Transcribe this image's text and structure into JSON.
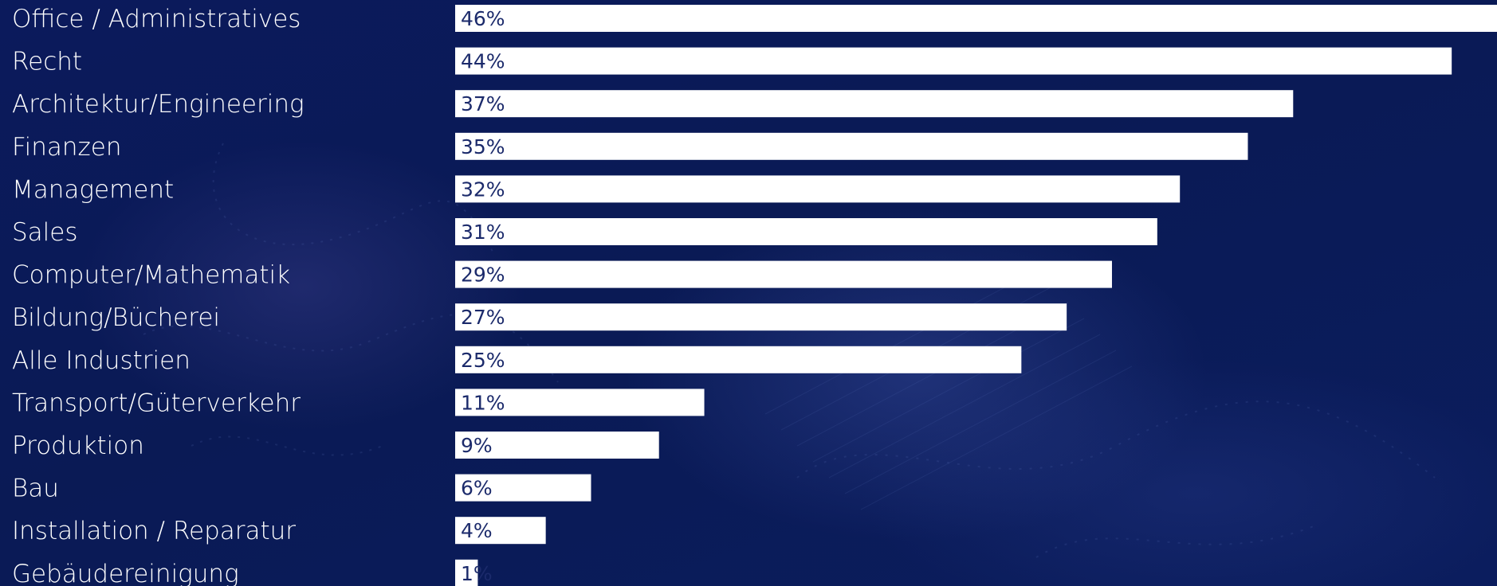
{
  "chart_data": {
    "type": "bar",
    "orientation": "horizontal",
    "categories": [
      "Office / Administratives",
      "Recht",
      "Architektur/Engineering",
      "Finanzen",
      "Management",
      "Sales",
      "Computer/Mathematik",
      "Bildung/Bücherei",
      "Alle Industrien",
      "Transport/Güterverkehr",
      "Produktion",
      "Bau",
      "Installation / Reparatur",
      "Gebäudereinigung"
    ],
    "values": [
      46,
      44,
      37,
      35,
      32,
      31,
      29,
      27,
      25,
      11,
      9,
      6,
      4,
      1
    ],
    "value_labels": [
      "46%",
      "44%",
      "37%",
      "35%",
      "32%",
      "31%",
      "29%",
      "27%",
      "25%",
      "11%",
      "9%",
      "6%",
      "4%",
      "1%"
    ],
    "xlim": [
      0,
      46
    ],
    "grid": false,
    "legend": "none",
    "title": "",
    "xlabel": "",
    "ylabel": "",
    "colors": {
      "bar": "#ffffff",
      "value_label": "#1b2a6b",
      "category_label": "#ffffff",
      "background": "#0a1a55"
    }
  }
}
